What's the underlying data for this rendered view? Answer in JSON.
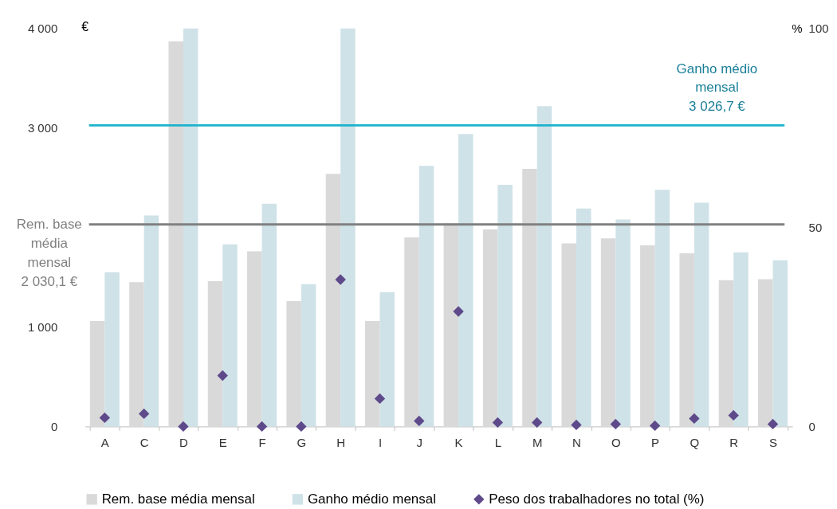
{
  "chart_data": {
    "type": "bar",
    "categories": [
      "A",
      "C",
      "D",
      "E",
      "F",
      "G",
      "H",
      "I",
      "J",
      "K",
      "L",
      "M",
      "N",
      "O",
      "P",
      "Q",
      "R",
      "S"
    ],
    "series": [
      {
        "name": "Rem. base média mensal",
        "color": "#d9d9d9",
        "values": [
          1060,
          1450,
          3870,
          1460,
          1760,
          1260,
          2540,
          1060,
          1900,
          2040,
          1980,
          2590,
          1840,
          1890,
          1820,
          1740,
          1470,
          1480
        ]
      },
      {
        "name": "Ganho médio mensal",
        "color": "#cfe2e8",
        "values": [
          1550,
          2120,
          4000,
          1830,
          2240,
          1430,
          4000,
          1350,
          2620,
          2940,
          2430,
          3220,
          2190,
          2080,
          2380,
          2250,
          1750,
          1670
        ]
      },
      {
        "name": "Peso dos trabalhadores no total (%)",
        "type": "scatter",
        "axis": "y2",
        "marker": "diamond",
        "color": "#5e4a8b",
        "values": [
          2.2,
          3.2,
          0,
          12.8,
          0,
          0,
          36.9,
          7.0,
          1.4,
          28.9,
          1.0,
          1.0,
          0.4,
          0.6,
          0.2,
          2.0,
          2.8,
          0.6
        ]
      }
    ],
    "ylabel": "€",
    "y2label": "%",
    "ylim": [
      0,
      4000
    ],
    "yticks": [
      0,
      {
        "value": 1000,
        "label": "1 000"
      },
      {
        "value": 3000,
        "label": "3 000"
      },
      {
        "value": 4000,
        "label": "4 000"
      }
    ],
    "y2lim": [
      0,
      100
    ],
    "y2ticks": [
      0,
      50,
      100
    ],
    "ref_lines": [
      {
        "axis": "y",
        "value": 3026.7,
        "label": "Ganho médio\nmensal\n3 026,7 €",
        "color": "#1cb3cc"
      },
      {
        "axis": "y",
        "value": 2030.1,
        "label": "Rem. base\nmédia\nmensal\n2 030,1 €",
        "color": "#808080"
      }
    ],
    "grid": false,
    "legend": "bottom"
  }
}
